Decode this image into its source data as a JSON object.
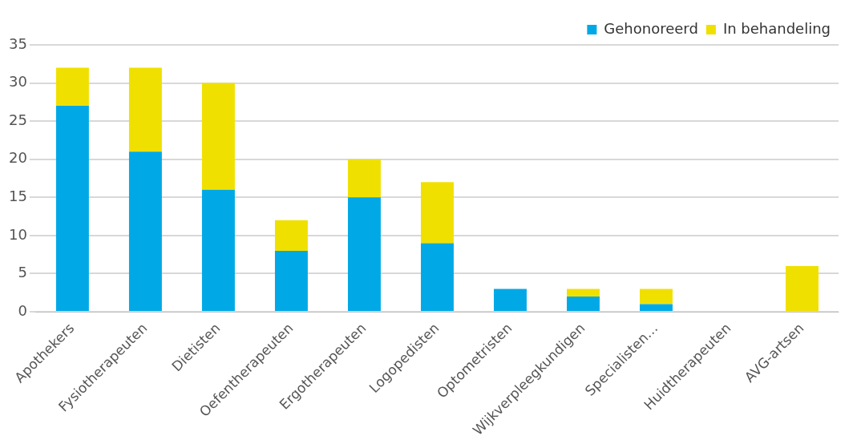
{
  "chart_data": {
    "type": "bar",
    "stacked": true,
    "categories": [
      "Apothekers",
      "Fysiotherapeuten",
      "Dietisten",
      "Oefentherapeuten",
      "Ergotherapeuten",
      "Logopedisten",
      "Optometristen",
      "Wijkverpleegkundigen",
      "Specialisten…",
      "Huidtherapeuten",
      "AVG-artsen"
    ],
    "series": [
      {
        "name": "Gehonoreerd",
        "color": "#00a9e6",
        "values": [
          27,
          21,
          16,
          8,
          15,
          9,
          3,
          2,
          1,
          0,
          0
        ]
      },
      {
        "name": "In behandeling",
        "color": "#f0e000",
        "values": [
          5,
          11,
          14,
          4,
          5,
          8,
          0,
          1,
          2,
          0,
          6
        ]
      }
    ],
    "ylim": [
      0,
      35
    ],
    "yticks": [
      0,
      5,
      10,
      15,
      20,
      25,
      30,
      35
    ],
    "grid": "y",
    "legend": "top right"
  }
}
